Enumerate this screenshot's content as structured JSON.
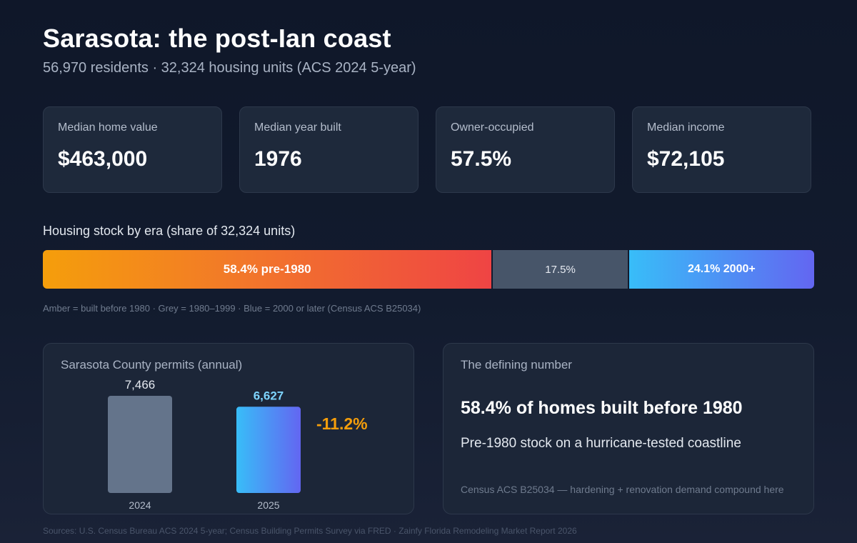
{
  "header": {
    "title": "Sarasota: the post-Ian coast",
    "subtitle": "56,970 residents · 32,324 housing units (ACS 2024 5-year)"
  },
  "kpis": [
    {
      "label": "Median home value",
      "value": "$463,000"
    },
    {
      "label": "Median year built",
      "value": "1976"
    },
    {
      "label": "Owner-occupied",
      "value": "57.5%"
    },
    {
      "label": "Median income",
      "value": "$72,105"
    }
  ],
  "housing_era": {
    "title": "Housing stock by era (share of 32,324 units)",
    "segments": [
      {
        "label": "58.4% pre-1980",
        "share": 58.4,
        "color": "#f59e0b"
      },
      {
        "label": "17.5%",
        "share": 17.5,
        "color": "#475569"
      },
      {
        "label": "24.1% 2000+",
        "share": 24.1,
        "color": "#38bdf8"
      }
    ],
    "legend": "Amber = built before 1980 · Grey = 1980–1999 · Blue = 2000 or later (Census ACS B25034)"
  },
  "permits": {
    "title": "Sarasota County permits (annual)",
    "change": "-11.2%"
  },
  "defining": {
    "title": "The defining number",
    "stat": "58.4% of homes built before 1980",
    "subtitle": "Pre-1980 stock on a hurricane-tested coastline",
    "note": "Census ACS B25034 — hardening + renovation demand compound here"
  },
  "footer": {
    "sources": "Sources: U.S. Census Bureau ACS 2024 5-year; Census Building Permits Survey via FRED · Zainfy Florida Remodeling Market Report 2026"
  },
  "chart_data": {
    "type": "bar",
    "title": "Sarasota County permits (annual)",
    "categories": [
      "2024",
      "2025"
    ],
    "values": [
      7466,
      6627
    ],
    "value_labels": [
      "7,466",
      "6,627"
    ],
    "colors": [
      "#64748b",
      "#38bdf8"
    ],
    "ylim": [
      0,
      7466
    ],
    "grid": false,
    "legend": "none"
  }
}
